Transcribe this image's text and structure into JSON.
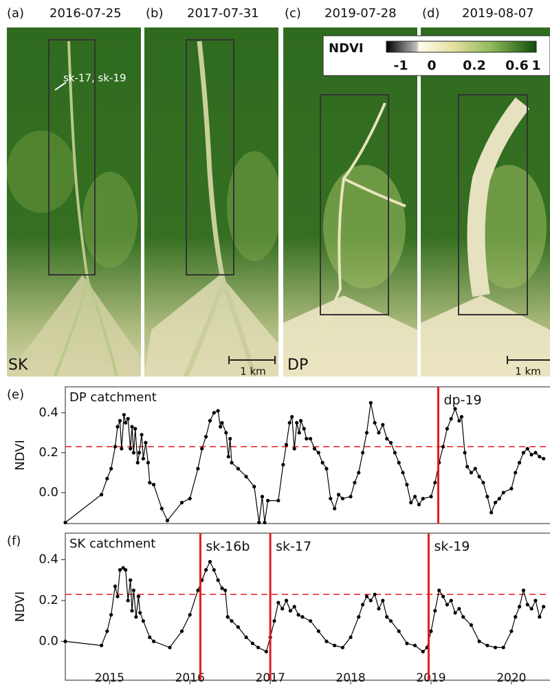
{
  "image_panels": [
    {
      "label": "(a)",
      "date": "2016-07-25"
    },
    {
      "label": "(b)",
      "date": "2017-07-31"
    },
    {
      "label": "(c)",
      "date": "2019-07-28"
    },
    {
      "label": "(d)",
      "date": "2019-08-07"
    }
  ],
  "site_labels": [
    "SK",
    "DP"
  ],
  "annotation": "sk-17, sk-19",
  "scale_bar": "1 km",
  "colorbar": {
    "label": "NDVI",
    "ticks": [
      -1,
      0,
      0.2,
      0.6,
      1
    ]
  },
  "chart_data": [
    {
      "type": "line",
      "panel_label": "(e)",
      "title": "DP catchment",
      "y_label": "NDVI",
      "x": [
        2014.95,
        2015.4,
        2015.47,
        2015.52,
        2015.57,
        2015.6,
        2015.63,
        2015.65,
        2015.68,
        2015.7,
        2015.73,
        2015.76,
        2015.78,
        2015.8,
        2015.82,
        2015.85,
        2015.87,
        2015.9,
        2015.92,
        2015.95,
        2015.98,
        2016.0,
        2016.05,
        2016.15,
        2016.22,
        2016.4,
        2016.5,
        2016.6,
        2016.65,
        2016.7,
        2016.75,
        2016.8,
        2016.85,
        2016.88,
        2016.9,
        2016.95,
        2016.98,
        2017.0,
        2017.02,
        2017.1,
        2017.2,
        2017.3,
        2017.36,
        2017.4,
        2017.43,
        2017.47,
        2017.6,
        2017.66,
        2017.7,
        2017.74,
        2017.77,
        2017.8,
        2017.83,
        2017.86,
        2017.88,
        2017.92,
        2017.95,
        2018.0,
        2018.05,
        2018.1,
        2018.15,
        2018.2,
        2018.25,
        2018.3,
        2018.35,
        2018.4,
        2018.5,
        2018.55,
        2018.6,
        2018.65,
        2018.7,
        2018.75,
        2018.8,
        2018.85,
        2018.9,
        2018.95,
        2019.0,
        2019.05,
        2019.1,
        2019.15,
        2019.2,
        2019.25,
        2019.3,
        2019.35,
        2019.4,
        2019.5,
        2019.55,
        2019.6,
        2019.65,
        2019.7,
        2019.75,
        2019.8,
        2019.85,
        2019.88,
        2019.92,
        2019.95,
        2020.0,
        2020.05,
        2020.1,
        2020.15,
        2020.2,
        2020.25,
        2020.3,
        2020.35,
        2020.4,
        2020.5,
        2020.55,
        2020.6,
        2020.65,
        2020.7,
        2020.75,
        2020.8,
        2020.85,
        2020.9
      ],
      "series": [
        {
          "color": "#000000",
          "values": [
            -0.15,
            -0.01,
            0.07,
            0.12,
            0.23,
            0.33,
            0.36,
            0.22,
            0.39,
            0.35,
            0.37,
            0.22,
            0.33,
            0.2,
            0.32,
            0.15,
            0.2,
            0.29,
            0.17,
            0.25,
            0.15,
            0.05,
            0.04,
            -0.08,
            -0.14,
            -0.05,
            -0.03,
            0.12,
            0.22,
            0.28,
            0.36,
            0.4,
            0.41,
            0.33,
            0.35,
            0.3,
            0.18,
            0.27,
            0.15,
            0.12,
            0.08,
            0.03,
            -0.15,
            -0.02,
            -0.15,
            -0.04,
            -0.04,
            0.14,
            0.24,
            0.35,
            0.38,
            0.22,
            0.35,
            0.3,
            0.36,
            0.32,
            0.27,
            0.27,
            0.22,
            0.2,
            0.15,
            0.12,
            -0.03,
            -0.08,
            -0.01,
            -0.03,
            -0.02,
            0.05,
            0.1,
            0.2,
            0.3,
            0.45,
            0.35,
            0.3,
            0.34,
            0.27,
            0.25,
            0.2,
            0.15,
            0.1,
            0.04,
            -0.05,
            -0.02,
            -0.06,
            -0.03,
            -0.02,
            0.05,
            0.15,
            0.23,
            0.32,
            0.37,
            0.42,
            0.36,
            0.38,
            0.2,
            0.13,
            0.1,
            0.12,
            0.08,
            0.05,
            -0.02,
            -0.1,
            -0.05,
            -0.03,
            0.0,
            0.02,
            0.1,
            0.15,
            0.2,
            0.22,
            0.19,
            0.2,
            0.18,
            0.17
          ]
        }
      ],
      "xlim": [
        2014.95,
        2020.98
      ],
      "ylim": [
        -0.155,
        0.53
      ],
      "yticks": [
        {
          "value": 0,
          "label": "0.0"
        },
        0.2,
        0.4
      ],
      "threshold": 0.23,
      "threshold_color": "#e41a1c",
      "events": [
        {
          "label": "dp-19",
          "x": 2019.59
        }
      ],
      "event_color": "#e41a1c"
    },
    {
      "type": "line",
      "panel_label": "(f)",
      "title": "SK catchment",
      "y_label": "NDVI",
      "x": [
        2014.95,
        2015.4,
        2015.47,
        2015.52,
        2015.57,
        2015.6,
        2015.63,
        2015.67,
        2015.7,
        2015.73,
        2015.76,
        2015.78,
        2015.8,
        2015.83,
        2015.86,
        2015.88,
        2015.92,
        2016.0,
        2016.05,
        2016.25,
        2016.4,
        2016.5,
        2016.6,
        2016.65,
        2016.7,
        2016.75,
        2016.8,
        2016.85,
        2016.9,
        2016.94,
        2016.97,
        2017.02,
        2017.1,
        2017.2,
        2017.28,
        2017.35,
        2017.45,
        2017.5,
        2017.55,
        2017.6,
        2017.65,
        2017.7,
        2017.75,
        2017.8,
        2017.85,
        2017.9,
        2018.0,
        2018.1,
        2018.2,
        2018.3,
        2018.4,
        2018.5,
        2018.6,
        2018.65,
        2018.7,
        2018.75,
        2018.8,
        2018.85,
        2018.9,
        2018.95,
        2019.0,
        2019.1,
        2019.2,
        2019.3,
        2019.4,
        2019.45,
        2019.5,
        2019.55,
        2019.6,
        2019.65,
        2019.7,
        2019.75,
        2019.8,
        2019.85,
        2019.9,
        2020.0,
        2020.1,
        2020.2,
        2020.3,
        2020.4,
        2020.5,
        2020.55,
        2020.6,
        2020.65,
        2020.7,
        2020.75,
        2020.8,
        2020.85,
        2020.9
      ],
      "series": [
        {
          "color": "#000000",
          "values": [
            0.0,
            -0.02,
            0.05,
            0.13,
            0.27,
            0.22,
            0.35,
            0.36,
            0.35,
            0.2,
            0.3,
            0.15,
            0.25,
            0.12,
            0.22,
            0.14,
            0.1,
            0.02,
            0.0,
            -0.03,
            0.05,
            0.13,
            0.25,
            0.3,
            0.35,
            0.39,
            0.35,
            0.3,
            0.26,
            0.25,
            0.12,
            0.1,
            0.07,
            0.02,
            -0.01,
            -0.03,
            -0.05,
            0.02,
            0.1,
            0.19,
            0.16,
            0.2,
            0.15,
            0.17,
            0.13,
            0.12,
            0.1,
            0.05,
            0.0,
            -0.02,
            -0.03,
            0.02,
            0.12,
            0.18,
            0.22,
            0.2,
            0.23,
            0.16,
            0.2,
            0.12,
            0.1,
            0.05,
            -0.01,
            -0.02,
            -0.05,
            -0.03,
            0.05,
            0.15,
            0.25,
            0.22,
            0.18,
            0.2,
            0.14,
            0.16,
            0.12,
            0.08,
            0.0,
            -0.02,
            -0.03,
            -0.03,
            0.05,
            0.12,
            0.17,
            0.25,
            0.18,
            0.16,
            0.2,
            0.12,
            0.17
          ]
        }
      ],
      "xlim": [
        2014.95,
        2020.98
      ],
      "ylim": [
        -0.19,
        0.53
      ],
      "xticks": [
        {
          "value": 2015.5,
          "label": "2015"
        },
        {
          "value": 2016.5,
          "label": "2016"
        },
        {
          "value": 2017.5,
          "label": "2017"
        },
        {
          "value": 2018.5,
          "label": "2018"
        },
        {
          "value": 2019.5,
          "label": "2019"
        },
        {
          "value": 2020.5,
          "label": "2020"
        }
      ],
      "yticks": [
        {
          "value": 0,
          "label": "0.0"
        },
        0.2,
        0.4
      ],
      "threshold": 0.23,
      "threshold_color": "#e41a1c",
      "events": [
        {
          "label": "sk-16b",
          "x": 2016.63
        },
        {
          "label": "sk-17",
          "x": 2017.5
        },
        {
          "label": "sk-19",
          "x": 2019.47
        }
      ],
      "event_color": "#e41a1c"
    }
  ]
}
